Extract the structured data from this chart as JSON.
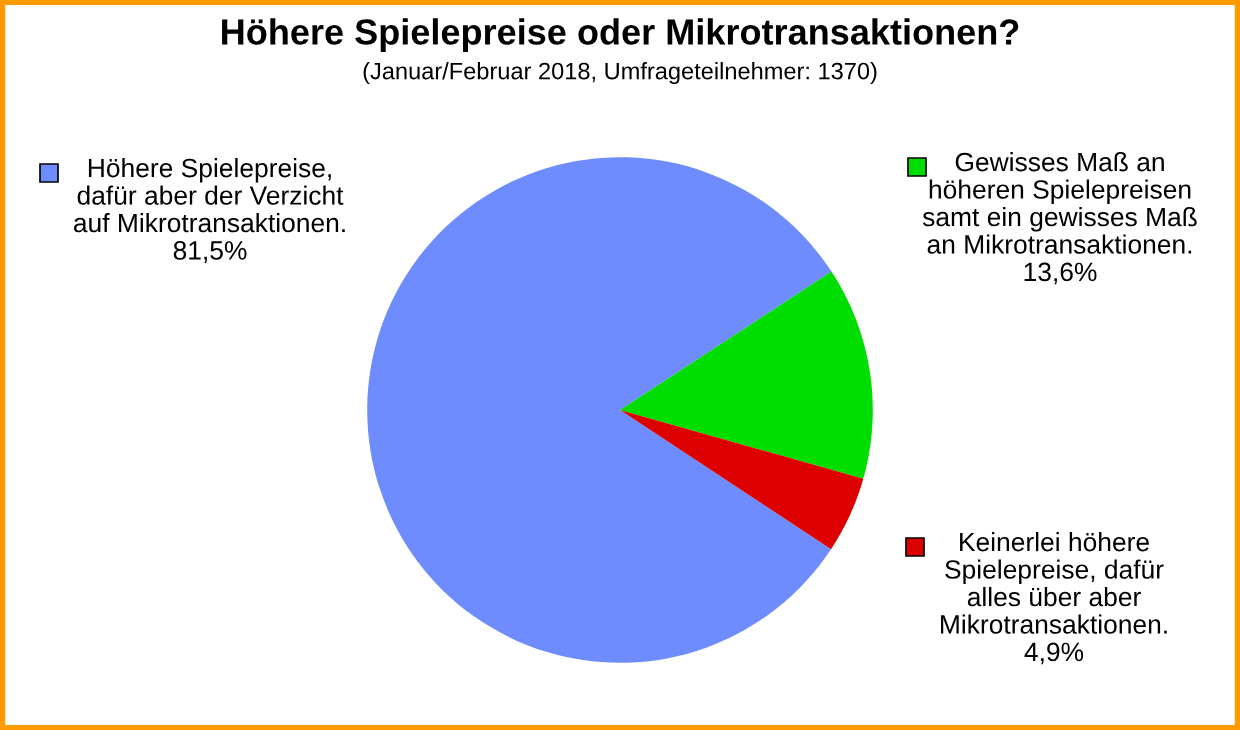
{
  "chart_data": {
    "type": "pie",
    "title": "Höhere Spielepreise oder Mikrotransaktionen?",
    "subtitle": "(Januar/Februar 2018, Umfrageteilnehmer: 1370)",
    "categories": [
      "Höhere Spielepreise,\ndafür aber der Verzicht\nauf Mikrotransaktionen.",
      "Gewisses Maß an\nhöheren Spielepreisen\nsamt ein gewisses Maß\nan Mikrotransaktionen.",
      "Keinerlei höhere\nSpielepreise, dafür\nalles über aber\nMikrotransaktionen."
    ],
    "values": [
      81.5,
      13.6,
      4.9
    ],
    "value_labels": [
      "81,5%",
      "13,6%",
      "4,9%"
    ],
    "colors": [
      "#6f8cff",
      "#00dd00",
      "#dd0000"
    ],
    "legend": "right"
  }
}
